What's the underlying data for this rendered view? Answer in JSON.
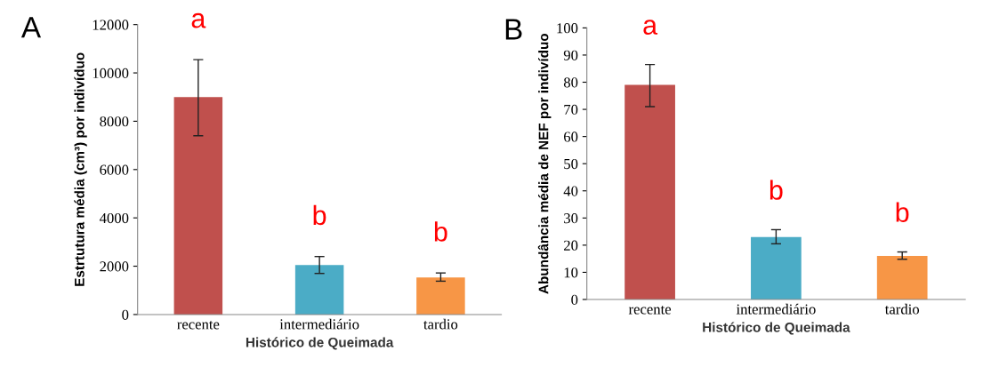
{
  "chart_data": [
    {
      "type": "bar",
      "title": "A",
      "xlabel": "Histórico de Queimada",
      "ylabel": "Estrtutura média (cm³) por indivíduo",
      "categories": [
        "recente",
        "intermediário",
        "tardio"
      ],
      "values": [
        9000,
        2050,
        1530
      ],
      "colors": [
        "#c0504d",
        "#4bacc6",
        "#f79646"
      ],
      "errors": [
        [
          7400,
          10550
        ],
        [
          1700,
          2400
        ],
        [
          1380,
          1720
        ]
      ],
      "ylim": [
        0,
        12000
      ],
      "yticks": [
        0,
        2000,
        4000,
        6000,
        8000,
        10000,
        12000
      ],
      "grid": false,
      "legend": false,
      "annotations": [
        "a",
        "b",
        "b"
      ]
    },
    {
      "type": "bar",
      "title": "B",
      "xlabel": "Histórico de Queimada",
      "ylabel": "Abundância média de NEF por indivíduo",
      "categories": [
        "recente",
        "intermediário",
        "tardio"
      ],
      "values": [
        79,
        23,
        16
      ],
      "colors": [
        "#c0504d",
        "#4bacc6",
        "#f79646"
      ],
      "errors": [
        [
          71,
          86.5
        ],
        [
          20.5,
          25.7
        ],
        [
          14.8,
          17.5
        ]
      ],
      "ylim": [
        0,
        100
      ],
      "yticks": [
        0,
        10,
        20,
        30,
        40,
        50,
        60,
        70,
        80,
        90,
        100
      ],
      "grid": false,
      "legend": false,
      "annotations": [
        "a",
        "b",
        "b"
      ]
    }
  ]
}
